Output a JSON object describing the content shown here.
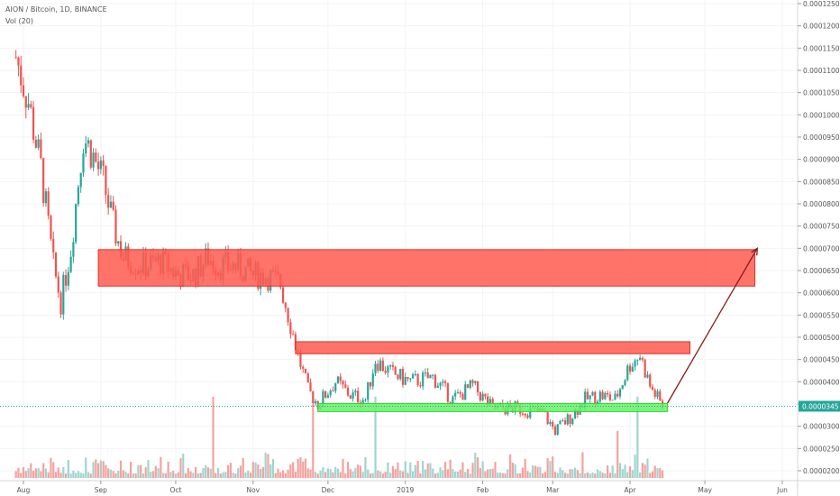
{
  "header": {
    "title": "AION / Bitcoin, 1D, BINANCE",
    "indicator": "Vol (20)"
  },
  "colors": {
    "up": "#26a69a",
    "down": "#ef5350",
    "zone_red": "#ff5a4f",
    "support_green": "#62f562",
    "arrow": "#8b1a1a",
    "current_price_line": "#26a69a"
  },
  "chart_data": {
    "type": "candlestick",
    "title": "AION / Bitcoin, 1D, BINANCE",
    "ylim": [
      1.8e-05,
      0.0001255
    ],
    "y_ticks": [
      "0.0000200",
      "0.0000250",
      "0.0000300",
      "0.0000350",
      "0.0000400",
      "0.0000450",
      "0.0000500",
      "0.0000550",
      "0.0000600",
      "0.0000650",
      "0.0000700",
      "0.0000750",
      "0.0000800",
      "0.0000850",
      "0.0000900",
      "0.0000950",
      "0.0001000",
      "0.0001050",
      "0.0001100",
      "0.0001150",
      "0.0001200",
      "0.0001250"
    ],
    "x_ticks": [
      {
        "label": "Aug",
        "date": "2018-08-01"
      },
      {
        "label": "Sep",
        "date": "2018-09-01"
      },
      {
        "label": "Oct",
        "date": "2018-10-01"
      },
      {
        "label": "Nov",
        "date": "2018-11-01"
      },
      {
        "label": "Dec",
        "date": "2018-12-01"
      },
      {
        "label": "2019",
        "date": "2019-01-01"
      },
      {
        "label": "Feb",
        "date": "2019-02-01"
      },
      {
        "label": "Mar",
        "date": "2019-03-01"
      },
      {
        "label": "Apr",
        "date": "2019-04-01"
      },
      {
        "label": "May",
        "date": "2019-05-01"
      },
      {
        "label": "Jun",
        "date": "2019-06-01"
      }
    ],
    "price_path": [
      {
        "date": "2018-07-29",
        "price": 0.000113
      },
      {
        "date": "2018-08-03",
        "price": 0.000103
      },
      {
        "date": "2018-08-08",
        "price": 8.8e-05
      },
      {
        "date": "2018-08-13",
        "price": 6.6e-05
      },
      {
        "date": "2018-08-16",
        "price": 5.8e-05
      },
      {
        "date": "2018-08-20",
        "price": 7e-05
      },
      {
        "date": "2018-08-25",
        "price": 9.5e-05
      },
      {
        "date": "2018-08-28",
        "price": 9.2e-05
      },
      {
        "date": "2018-09-02",
        "price": 8.5e-05
      },
      {
        "date": "2018-09-06",
        "price": 7.5e-05
      },
      {
        "date": "2018-09-10",
        "price": 6.8e-05
      },
      {
        "date": "2018-09-18",
        "price": 6.6e-05
      },
      {
        "date": "2018-09-25",
        "price": 6.7e-05
      },
      {
        "date": "2018-10-02",
        "price": 6.4e-05
      },
      {
        "date": "2018-10-08",
        "price": 6.4e-05
      },
      {
        "date": "2018-10-14",
        "price": 6.8e-05
      },
      {
        "date": "2018-10-18",
        "price": 6.6e-05
      },
      {
        "date": "2018-10-25",
        "price": 6.6e-05
      },
      {
        "date": "2018-11-01",
        "price": 6.4e-05
      },
      {
        "date": "2018-11-06",
        "price": 6.4e-05
      },
      {
        "date": "2018-11-12",
        "price": 6.2e-05
      },
      {
        "date": "2018-11-16",
        "price": 5.3e-05
      },
      {
        "date": "2018-11-19",
        "price": 4.6e-05
      },
      {
        "date": "2018-11-23",
        "price": 3.8e-05
      },
      {
        "date": "2018-11-27",
        "price": 3.5e-05
      },
      {
        "date": "2018-12-04",
        "price": 4e-05
      },
      {
        "date": "2018-12-10",
        "price": 3.7e-05
      },
      {
        "date": "2018-12-16",
        "price": 3.6e-05
      },
      {
        "date": "2018-12-20",
        "price": 4.5e-05
      },
      {
        "date": "2018-12-26",
        "price": 4.2e-05
      },
      {
        "date": "2019-01-03",
        "price": 4e-05
      },
      {
        "date": "2019-01-12",
        "price": 4.1e-05
      },
      {
        "date": "2019-01-20",
        "price": 3.6e-05
      },
      {
        "date": "2019-01-28",
        "price": 3.9e-05
      },
      {
        "date": "2019-02-05",
        "price": 3.4e-05
      },
      {
        "date": "2019-02-15",
        "price": 3.4e-05
      },
      {
        "date": "2019-02-25",
        "price": 3.3e-05
      },
      {
        "date": "2019-03-02",
        "price": 2.9e-05
      },
      {
        "date": "2019-03-08",
        "price": 3.2e-05
      },
      {
        "date": "2019-03-14",
        "price": 3.6e-05
      },
      {
        "date": "2019-03-20",
        "price": 3.7e-05
      },
      {
        "date": "2019-03-26",
        "price": 3.6e-05
      },
      {
        "date": "2019-04-01",
        "price": 4.4e-05
      },
      {
        "date": "2019-04-05",
        "price": 4.6e-05
      },
      {
        "date": "2019-04-09",
        "price": 3.9e-05
      },
      {
        "date": "2019-04-14",
        "price": 3.45e-05
      }
    ],
    "volume_spikes": [
      {
        "date": "2018-10-16",
        "rel": 0.95
      },
      {
        "date": "2018-11-25",
        "rel": 0.85
      },
      {
        "date": "2018-12-20",
        "rel": 0.95
      },
      {
        "date": "2019-03-27",
        "rel": 0.55
      },
      {
        "date": "2019-04-04",
        "rel": 0.95
      }
    ],
    "current_price": "0.0000345",
    "annotations": [
      {
        "kind": "resistance_zone",
        "from": "2018-08-31",
        "to": "2019-05-21",
        "low": 6.15e-05,
        "high": 6.97e-05
      },
      {
        "kind": "resistance_zone",
        "from": "2018-11-18",
        "to": "2019-04-25",
        "low": 4.63e-05,
        "high": 4.9e-05
      },
      {
        "kind": "support_zone",
        "from": "2018-11-27",
        "to": "2019-04-16",
        "low": 3.33e-05,
        "high": 3.51e-05
      },
      {
        "kind": "arrow",
        "from": {
          "date": "2019-04-16",
          "price": 3.52e-05
        },
        "to": {
          "date": "2019-05-22",
          "price": 7e-05
        }
      }
    ]
  }
}
